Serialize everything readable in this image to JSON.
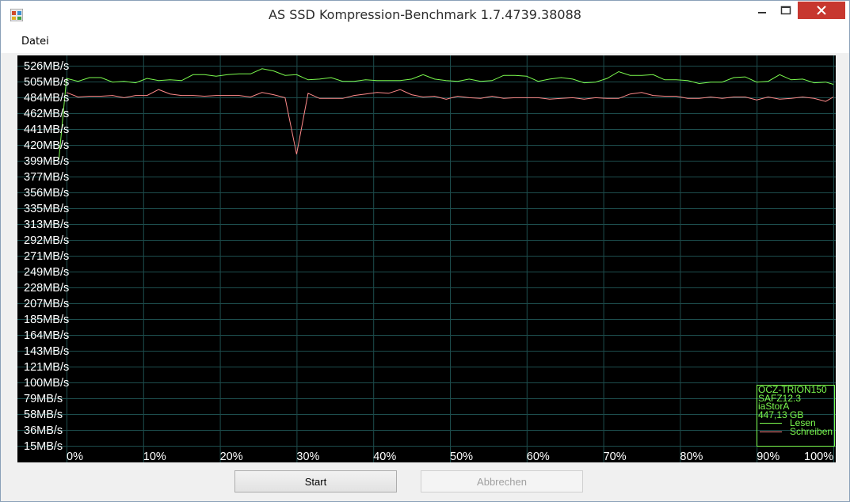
{
  "window": {
    "title": "AS SSD Kompression-Benchmark 1.7.4739.38088"
  },
  "menu": {
    "items": [
      "Datei"
    ]
  },
  "buttons": {
    "start": "Start",
    "abort": "Abbrechen"
  },
  "legend": {
    "model": "OCZ-TRION150",
    "firmware": "SAFZ12.3",
    "driver": "iaStorA",
    "capacity": "447,13 GB",
    "read_label": "Lesen",
    "write_label": "Schreiben"
  },
  "colors": {
    "read": "#7cfc4f",
    "write": "#ff8a8a",
    "grid": "#1d4d4d"
  },
  "chart_data": {
    "type": "line",
    "y_tick_labels": [
      "526MB/s",
      "505MB/s",
      "484MB/s",
      "462MB/s",
      "441MB/s",
      "420MB/s",
      "399MB/s",
      "377MB/s",
      "356MB/s",
      "335MB/s",
      "313MB/s",
      "292MB/s",
      "271MB/s",
      "249MB/s",
      "228MB/s",
      "207MB/s",
      "185MB/s",
      "164MB/s",
      "143MB/s",
      "121MB/s",
      "100MB/s",
      "79MB/s",
      "58MB/s",
      "36MB/s",
      "15MB/s"
    ],
    "x_tick_labels": [
      "0%",
      "10%",
      "20%",
      "30%",
      "40%",
      "50%",
      "60%",
      "70%",
      "80%",
      "90%",
      "100%"
    ],
    "ylim": [
      15,
      526
    ],
    "xlim": [
      0,
      100
    ],
    "series": [
      {
        "name": "Lesen",
        "x": [
          -1,
          0,
          1.5,
          3,
          4.5,
          6,
          7.5,
          9,
          10.5,
          12,
          13.5,
          15,
          16.5,
          18,
          19.5,
          21,
          22.5,
          24,
          25.5,
          27,
          28.5,
          30,
          31.5,
          33,
          34.5,
          36,
          37.5,
          39,
          40.5,
          42,
          43.5,
          45,
          46.5,
          48,
          49.5,
          51,
          52.5,
          54,
          55.5,
          57,
          58.5,
          60,
          61.5,
          63,
          64.5,
          66,
          67.5,
          69,
          70.5,
          72,
          73.5,
          75,
          76.5,
          78,
          79.5,
          81,
          82.5,
          84,
          85.5,
          87,
          88.5,
          90,
          91.5,
          93,
          94.5,
          96,
          97.5,
          99,
          100
        ],
        "values": [
          400,
          509,
          505,
          510,
          510,
          504,
          505,
          503,
          509,
          506,
          507,
          506,
          514,
          514,
          512,
          514,
          515,
          515,
          522,
          519,
          513,
          514,
          507,
          508,
          510,
          505,
          505,
          507,
          506,
          506,
          506,
          508,
          514,
          508,
          506,
          505,
          508,
          505,
          506,
          513,
          513,
          512,
          505,
          508,
          510,
          508,
          503,
          504,
          509,
          518,
          513,
          513,
          514,
          507,
          507,
          506,
          502,
          504,
          504,
          510,
          511,
          504,
          505,
          514,
          507,
          508,
          503,
          504,
          501
        ]
      },
      {
        "name": "Schreiben",
        "x": [
          0,
          1.5,
          3,
          4.5,
          6,
          7.5,
          9,
          10.5,
          12,
          13.5,
          15,
          16.5,
          18,
          19.5,
          21,
          22.5,
          24,
          25.5,
          27,
          28.5,
          30,
          31.5,
          33,
          34.5,
          36,
          37.5,
          39,
          40.5,
          42,
          43.5,
          45,
          46.5,
          48,
          49.5,
          51,
          52.5,
          54,
          55.5,
          57,
          58.5,
          60,
          61.5,
          63,
          64.5,
          66,
          67.5,
          69,
          70.5,
          72,
          73.5,
          75,
          76.5,
          78,
          79.5,
          81,
          82.5,
          84,
          85.5,
          87,
          88.5,
          90,
          91.5,
          93,
          94.5,
          96,
          97.5,
          99,
          100
        ],
        "values": [
          490,
          484,
          485,
          485,
          486,
          483,
          486,
          486,
          494,
          488,
          486,
          486,
          485,
          486,
          486,
          486,
          484,
          490,
          487,
          483,
          407,
          489,
          482,
          482,
          482,
          486,
          488,
          490,
          489,
          494,
          487,
          484,
          485,
          481,
          485,
          483,
          482,
          485,
          482,
          483,
          483,
          483,
          481,
          482,
          483,
          481,
          483,
          482,
          482,
          488,
          490,
          486,
          485,
          485,
          482,
          482,
          484,
          482,
          484,
          484,
          480,
          484,
          481,
          482,
          484,
          482,
          478,
          484
        ]
      }
    ]
  }
}
